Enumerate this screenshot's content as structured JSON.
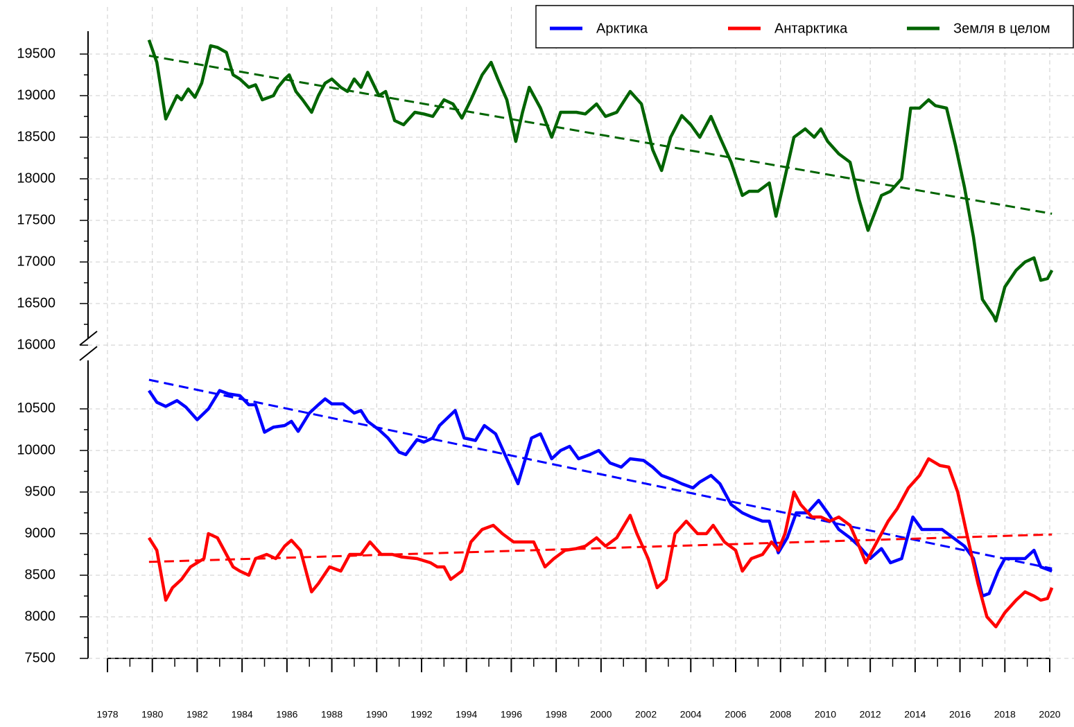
{
  "chart_data": {
    "type": "line",
    "xlim": [
      1978,
      2020
    ],
    "xticks": [
      1978,
      1980,
      1982,
      1984,
      1986,
      1988,
      1990,
      1992,
      1994,
      1996,
      1998,
      2000,
      2002,
      2004,
      2006,
      2008,
      2010,
      2012,
      2014,
      2016,
      2018,
      2020
    ],
    "y_segments": [
      {
        "ylim": [
          7500,
          11083
        ],
        "yticks": [
          7500,
          8000,
          8500,
          9000,
          9500,
          10000,
          10500
        ]
      },
      {
        "ylim": [
          16000,
          19775
        ],
        "yticks": [
          16000,
          16500,
          17000,
          17500,
          18000,
          18500,
          19000,
          19500
        ]
      }
    ],
    "grid": true,
    "legend": "top-right",
    "series": [
      {
        "name": "Арктика",
        "color": "#0000ff",
        "segment": 0,
        "x": [
          1979.85,
          1980.2,
          1980.6,
          1981.1,
          1981.5,
          1982.0,
          1982.5,
          1983.0,
          1983.4,
          1983.9,
          1984.3,
          1984.6,
          1985.0,
          1985.4,
          1985.9,
          1986.2,
          1986.5,
          1987.0,
          1987.4,
          1987.7,
          1988.0,
          1988.5,
          1989.0,
          1989.3,
          1989.6,
          1990.1,
          1990.5,
          1991.0,
          1991.3,
          1991.8,
          1992.1,
          1992.5,
          1992.8,
          1993.5,
          1993.9,
          1994.4,
          1994.8,
          1995.3,
          1995.8,
          1996.3,
          1996.9,
          1997.3,
          1997.8,
          1998.2,
          1998.6,
          1999.0,
          1999.5,
          1999.9,
          2000.4,
          2000.9,
          2001.3,
          2001.9,
          2002.3,
          2002.7,
          2003.2,
          2003.6,
          2004.1,
          2004.4,
          2004.9,
          2005.3,
          2005.8,
          2006.3,
          2006.7,
          2007.2,
          2007.5,
          2007.9,
          2008.3,
          2008.7,
          2009.2,
          2009.7,
          2010.1,
          2010.6,
          2011.1,
          2011.5,
          2012.0,
          2012.5,
          2012.9,
          2013.4,
          2013.9,
          2014.3,
          2014.8,
          2015.2,
          2015.7,
          2016.2,
          2016.6,
          2017.0,
          2017.3,
          2017.7,
          2018.0,
          2018.5,
          2018.9,
          2019.3,
          2019.6,
          2020.1
        ],
        "values": [
          10720,
          10580,
          10530,
          10600,
          10520,
          10370,
          10500,
          10720,
          10680,
          10660,
          10550,
          10550,
          10220,
          10280,
          10300,
          10350,
          10230,
          10450,
          10550,
          10620,
          10560,
          10560,
          10450,
          10480,
          10350,
          10250,
          10150,
          9980,
          9950,
          10130,
          10100,
          10150,
          10300,
          10480,
          10150,
          10120,
          10300,
          10200,
          9900,
          9600,
          10150,
          10200,
          9900,
          10000,
          10050,
          9900,
          9950,
          10000,
          9850,
          9800,
          9900,
          9880,
          9800,
          9700,
          9650,
          9600,
          9550,
          9620,
          9700,
          9600,
          9350,
          9250,
          9200,
          9150,
          9150,
          8770,
          8950,
          9250,
          9250,
          9400,
          9250,
          9050,
          8950,
          8850,
          8700,
          8820,
          8650,
          8700,
          9200,
          9050,
          9050,
          9050,
          8950,
          8850,
          8700,
          8250,
          8280,
          8550,
          8700,
          8700,
          8700,
          8800,
          8600,
          8550
        ]
      },
      {
        "name": "Антарктика",
        "color": "#ff0000",
        "segment": 0,
        "x": [
          1979.85,
          1980.2,
          1980.6,
          1980.9,
          1981.3,
          1981.7,
          1982.0,
          1982.3,
          1982.5,
          1982.9,
          1983.2,
          1983.6,
          1983.9,
          1984.3,
          1984.6,
          1985.1,
          1985.5,
          1985.9,
          1986.2,
          1986.6,
          1987.1,
          1987.4,
          1987.9,
          1988.4,
          1988.8,
          1989.3,
          1989.7,
          1990.2,
          1990.7,
          1991.1,
          1991.8,
          1992.4,
          1992.7,
          1993.0,
          1993.3,
          1993.8,
          1994.2,
          1994.7,
          1995.2,
          1995.6,
          1996.1,
          1996.5,
          1997.0,
          1997.5,
          1997.9,
          1998.4,
          1998.9,
          1999.3,
          1999.8,
          2000.2,
          2000.7,
          2001.3,
          2001.6,
          2002.1,
          2002.5,
          2002.9,
          2003.3,
          2003.8,
          2004.3,
          2004.7,
          2005.0,
          2005.5,
          2006.0,
          2006.3,
          2006.7,
          2007.2,
          2007.6,
          2007.9,
          2008.2,
          2008.6,
          2008.9,
          2009.4,
          2009.8,
          2010.2,
          2010.6,
          2011.1,
          2011.5,
          2011.8,
          2012.3,
          2012.8,
          2013.2,
          2013.7,
          2014.2,
          2014.6,
          2015.1,
          2015.5,
          2015.9,
          2016.3,
          2016.8,
          2017.2,
          2017.6,
          2018.0,
          2018.5,
          2018.9,
          2019.3,
          2019.6,
          2019.9,
          2020.1
        ],
        "values": [
          8950,
          8800,
          8200,
          8350,
          8450,
          8600,
          8650,
          8700,
          9000,
          8950,
          8800,
          8600,
          8550,
          8500,
          8700,
          8750,
          8700,
          8850,
          8920,
          8800,
          8300,
          8400,
          8600,
          8550,
          8750,
          8750,
          8900,
          8750,
          8750,
          8720,
          8700,
          8650,
          8600,
          8600,
          8450,
          8550,
          8900,
          9050,
          9100,
          9000,
          8900,
          8900,
          8900,
          8600,
          8700,
          8800,
          8820,
          8850,
          8950,
          8850,
          8950,
          9220,
          9000,
          8700,
          8350,
          8450,
          9000,
          9150,
          9000,
          9000,
          9100,
          8900,
          8800,
          8550,
          8700,
          8750,
          8900,
          8800,
          9000,
          9500,
          9350,
          9200,
          9200,
          9150,
          9200,
          9100,
          8850,
          8650,
          8900,
          9150,
          9300,
          9550,
          9700,
          9900,
          9820,
          9800,
          9500,
          9000,
          8400,
          8000,
          7880,
          8050,
          8200,
          8300,
          8250,
          8200,
          8220,
          8350
        ]
      },
      {
        "name": "Земля в целом",
        "color": "#006400",
        "segment": 1,
        "x": [
          1979.85,
          1980.2,
          1980.6,
          1981.1,
          1981.3,
          1981.6,
          1981.9,
          1982.2,
          1982.6,
          1982.9,
          1983.3,
          1983.6,
          1983.9,
          1984.3,
          1984.6,
          1984.9,
          1985.4,
          1985.6,
          1985.9,
          1986.1,
          1986.4,
          1986.7,
          1987.1,
          1987.4,
          1987.7,
          1988.0,
          1988.4,
          1988.7,
          1989.0,
          1989.3,
          1989.6,
          1990.1,
          1990.4,
          1990.8,
          1991.2,
          1991.7,
          1992.1,
          1992.5,
          1993.0,
          1993.4,
          1993.8,
          1994.2,
          1994.7,
          1995.1,
          1995.4,
          1995.8,
          1996.2,
          1996.5,
          1996.8,
          1997.3,
          1997.8,
          1998.2,
          1998.9,
          1999.3,
          1999.8,
          2000.2,
          2000.7,
          2001.3,
          2001.8,
          2002.3,
          2002.7,
          2003.1,
          2003.6,
          2004.0,
          2004.4,
          2004.9,
          2005.3,
          2005.8,
          2006.3,
          2006.6,
          2007.0,
          2007.5,
          2007.8,
          2008.1,
          2008.6,
          2009.1,
          2009.5,
          2009.8,
          2010.1,
          2010.6,
          2011.1,
          2011.5,
          2011.9,
          2012.5,
          2012.9,
          2013.4,
          2013.8,
          2014.2,
          2014.6,
          2014.9,
          2015.4,
          2015.8,
          2016.2,
          2016.6,
          2017.0,
          2017.5,
          2017.6,
          2018.0,
          2018.5,
          2018.9,
          2019.3,
          2019.6,
          2019.9,
          2020.1
        ],
        "values": [
          19670,
          19400,
          18720,
          19000,
          18950,
          19080,
          18980,
          19150,
          19600,
          19580,
          19520,
          19250,
          19200,
          19100,
          19130,
          18950,
          19000,
          19100,
          19200,
          19250,
          19050,
          18950,
          18800,
          19000,
          19150,
          19200,
          19100,
          19050,
          19200,
          19100,
          19280,
          19000,
          19050,
          18700,
          18650,
          18800,
          18780,
          18750,
          18950,
          18900,
          18730,
          18950,
          19250,
          19400,
          19200,
          18950,
          18450,
          18800,
          19100,
          18850,
          18500,
          18800,
          18800,
          18780,
          18900,
          18750,
          18800,
          19050,
          18900,
          18350,
          18100,
          18500,
          18760,
          18650,
          18500,
          18750,
          18500,
          18200,
          17800,
          17850,
          17850,
          17950,
          17550,
          17900,
          18500,
          18600,
          18500,
          18600,
          18450,
          18300,
          18200,
          17750,
          17380,
          17800,
          17850,
          18000,
          18850,
          18850,
          18950,
          18880,
          18850,
          18400,
          17900,
          17300,
          16550,
          16350,
          16290,
          16700,
          16900,
          17000,
          17050,
          16780,
          16800,
          16900
        ]
      }
    ],
    "trends": [
      {
        "color": "#0000ff",
        "segment": 0,
        "x": [
          1979.85,
          2020.1
        ],
        "values": [
          10850,
          8580
        ]
      },
      {
        "color": "#ff0000",
        "segment": 0,
        "x": [
          1979.85,
          2020.1
        ],
        "values": [
          8660,
          8990
        ]
      },
      {
        "color": "#006400",
        "segment": 1,
        "x": [
          1979.85,
          2020.1
        ],
        "values": [
          19480,
          17580
        ]
      }
    ]
  }
}
